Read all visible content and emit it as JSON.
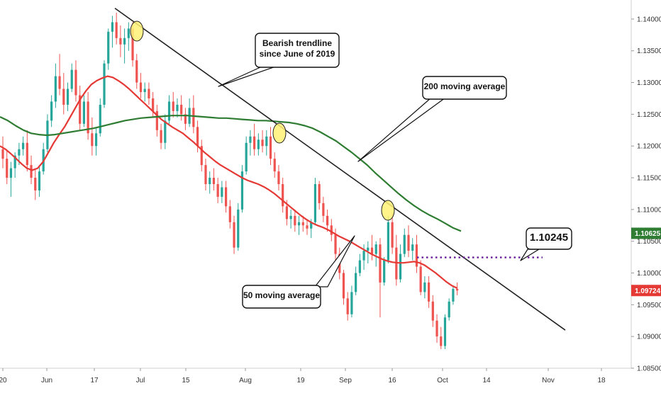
{
  "chart_data": {
    "type": "candlestick",
    "title": "",
    "xlabel": "",
    "ylabel": "",
    "ylim": [
      1.085,
      1.143
    ],
    "y_ticks": [
      "1.14000",
      "1.13500",
      "1.13000",
      "1.12500",
      "1.12000",
      "1.11500",
      "1.11000",
      "1.10500",
      "1.10000",
      "1.09500",
      "1.09000",
      "1.08500"
    ],
    "x_ticks": [
      "20",
      "Jun",
      "17",
      "Jul",
      "15",
      "Aug",
      "19",
      "Sep",
      "16",
      "Oct",
      "14",
      "Nov",
      "18"
    ],
    "grid": false,
    "colors": {
      "up": "#26a69a",
      "down": "#ef5350",
      "ma50": "#e53935",
      "ma200": "#2e7d32",
      "trendline": "#222222",
      "level": "#6a1b9a",
      "highlight": "#fff176"
    },
    "series": [
      {
        "name": "",
        "type": "candles",
        "values": [
          [
            1.1195,
            1.1215,
            1.1165,
            1.118
          ],
          [
            1.118,
            1.1195,
            1.114,
            1.115
          ],
          [
            1.115,
            1.1175,
            1.112,
            1.1165
          ],
          [
            1.1165,
            1.119,
            1.115,
            1.1185
          ],
          [
            1.1185,
            1.1205,
            1.117,
            1.1195
          ],
          [
            1.1195,
            1.1215,
            1.1185,
            1.1205
          ],
          [
            1.1205,
            1.1225,
            1.116,
            1.117
          ],
          [
            1.117,
            1.1185,
            1.114,
            1.115
          ],
          [
            1.115,
            1.1165,
            1.1115,
            1.113
          ],
          [
            1.113,
            1.117,
            1.112,
            1.116
          ],
          [
            1.116,
            1.1205,
            1.1155,
            1.1195
          ],
          [
            1.1195,
            1.125,
            1.119,
            1.124
          ],
          [
            1.124,
            1.128,
            1.123,
            1.127
          ],
          [
            1.127,
            1.133,
            1.126,
            1.131
          ],
          [
            1.131,
            1.1345,
            1.128,
            1.129
          ],
          [
            1.129,
            1.1315,
            1.125,
            1.1265
          ],
          [
            1.1265,
            1.13,
            1.1255,
            1.129
          ],
          [
            1.129,
            1.133,
            1.1285,
            1.132
          ],
          [
            1.132,
            1.1335,
            1.127,
            1.128
          ],
          [
            1.128,
            1.1295,
            1.1225,
            1.1235
          ],
          [
            1.1235,
            1.128,
            1.123,
            1.127
          ],
          [
            1.127,
            1.1285,
            1.121,
            1.122
          ],
          [
            1.122,
            1.1245,
            1.1185,
            1.12
          ],
          [
            1.12,
            1.123,
            1.1185,
            1.122
          ],
          [
            1.122,
            1.1275,
            1.1215,
            1.1265
          ],
          [
            1.1265,
            1.1335,
            1.126,
            1.133
          ],
          [
            1.133,
            1.1385,
            1.132,
            1.138
          ],
          [
            1.138,
            1.1405,
            1.1355,
            1.1395
          ],
          [
            1.1395,
            1.141,
            1.136,
            1.137
          ],
          [
            1.137,
            1.139,
            1.134,
            1.136
          ],
          [
            1.136,
            1.1385,
            1.133,
            1.137
          ],
          [
            1.137,
            1.1395,
            1.135,
            1.1385
          ],
          [
            1.1385,
            1.1395,
            1.1325,
            1.1335
          ],
          [
            1.1335,
            1.1345,
            1.129,
            1.13
          ],
          [
            1.13,
            1.1315,
            1.1275,
            1.1285
          ],
          [
            1.1285,
            1.13,
            1.127,
            1.129
          ],
          [
            1.129,
            1.13,
            1.1265,
            1.1275
          ],
          [
            1.1275,
            1.1285,
            1.1245,
            1.1255
          ],
          [
            1.1255,
            1.1265,
            1.1215,
            1.1225
          ],
          [
            1.1225,
            1.1235,
            1.1195,
            1.1205
          ],
          [
            1.1205,
            1.125,
            1.1195,
            1.124
          ],
          [
            1.124,
            1.128,
            1.1235,
            1.127
          ],
          [
            1.127,
            1.1285,
            1.1245,
            1.1255
          ],
          [
            1.1255,
            1.1275,
            1.1245,
            1.1265
          ],
          [
            1.1265,
            1.128,
            1.124,
            1.125
          ],
          [
            1.125,
            1.126,
            1.1225,
            1.1235
          ],
          [
            1.1235,
            1.1275,
            1.123,
            1.126
          ],
          [
            1.126,
            1.128,
            1.122,
            1.123
          ],
          [
            1.123,
            1.124,
            1.119,
            1.12
          ],
          [
            1.12,
            1.121,
            1.116,
            1.117
          ],
          [
            1.117,
            1.118,
            1.113,
            1.114
          ],
          [
            1.114,
            1.116,
            1.1125,
            1.115
          ],
          [
            1.115,
            1.1165,
            1.113,
            1.114
          ],
          [
            1.114,
            1.115,
            1.111,
            1.112
          ],
          [
            1.112,
            1.1145,
            1.111,
            1.1135
          ],
          [
            1.1135,
            1.1145,
            1.1095,
            1.1105
          ],
          [
            1.1105,
            1.1115,
            1.107,
            1.108
          ],
          [
            1.108,
            1.109,
            1.103,
            1.104
          ],
          [
            1.104,
            1.111,
            1.1035,
            1.11
          ],
          [
            1.11,
            1.117,
            1.1095,
            1.116
          ],
          [
            1.116,
            1.1215,
            1.1155,
            1.1205
          ],
          [
            1.1205,
            1.1225,
            1.1185,
            1.1215
          ],
          [
            1.1215,
            1.1235,
            1.1185,
            1.1195
          ],
          [
            1.1195,
            1.122,
            1.1185,
            1.121
          ],
          [
            1.121,
            1.1225,
            1.119,
            1.12
          ],
          [
            1.12,
            1.1225,
            1.1185,
            1.1215
          ],
          [
            1.1215,
            1.123,
            1.117,
            1.118
          ],
          [
            1.118,
            1.119,
            1.115,
            1.116
          ],
          [
            1.116,
            1.117,
            1.113,
            1.114
          ],
          [
            1.114,
            1.115,
            1.1095,
            1.1105
          ],
          [
            1.1105,
            1.1115,
            1.1075,
            1.1085
          ],
          [
            1.1085,
            1.11,
            1.107,
            1.109
          ],
          [
            1.109,
            1.11,
            1.1065,
            1.1075
          ],
          [
            1.1075,
            1.109,
            1.106,
            1.108
          ],
          [
            1.108,
            1.109,
            1.1065,
            1.1075
          ],
          [
            1.1075,
            1.1085,
            1.106,
            1.107
          ],
          [
            1.107,
            1.1085,
            1.1055,
            1.108
          ],
          [
            1.108,
            1.115,
            1.1075,
            1.114
          ],
          [
            1.114,
            1.1145,
            1.11,
            1.111
          ],
          [
            1.111,
            1.112,
            1.108,
            1.109
          ],
          [
            1.109,
            1.11,
            1.1065,
            1.1075
          ],
          [
            1.1075,
            1.1085,
            1.105,
            1.106
          ],
          [
            1.106,
            1.107,
            1.102,
            1.103
          ],
          [
            1.103,
            1.104,
            1.099,
            1.1
          ],
          [
            1.1,
            1.1005,
            1.095,
            1.096
          ],
          [
            1.096,
            1.097,
            1.0925,
            1.0935
          ],
          [
            1.0935,
            1.098,
            1.093,
            1.097
          ],
          [
            1.097,
            1.101,
            1.0965,
            1.1
          ],
          [
            1.1,
            1.103,
            1.0995,
            1.102
          ],
          [
            1.102,
            1.1045,
            1.1005,
            1.1035
          ],
          [
            1.1035,
            1.105,
            1.1015,
            1.104
          ],
          [
            1.104,
            1.106,
            1.102,
            1.103
          ],
          [
            1.103,
            1.105,
            1.101,
            1.1045
          ],
          [
            1.1045,
            1.1055,
            1.093,
            1.0985
          ],
          [
            1.0985,
            1.1025,
            1.098,
            1.102
          ],
          [
            1.102,
            1.109,
            1.1015,
            1.108
          ],
          [
            1.108,
            1.1095,
            1.103,
            1.104
          ],
          [
            1.104,
            1.106,
            1.098,
            1.099
          ],
          [
            1.099,
            1.1045,
            1.0985,
            1.103
          ],
          [
            1.103,
            1.107,
            1.1025,
            1.106
          ],
          [
            1.106,
            1.1075,
            1.1025,
            1.1035
          ],
          [
            1.1035,
            1.1055,
            1.102,
            1.1045
          ],
          [
            1.1045,
            1.106,
            1.1,
            1.101
          ],
          [
            1.101,
            1.102,
            1.0965,
            1.097
          ],
          [
            1.097,
            1.0995,
            1.096,
            1.0985
          ],
          [
            1.0985,
            1.0995,
            1.0945,
            1.0955
          ],
          [
            1.0955,
            1.0965,
            1.0915,
            1.0925
          ],
          [
            1.0925,
            1.0935,
            1.089,
            1.09
          ],
          [
            1.09,
            1.0915,
            1.088,
            1.0885
          ],
          [
            1.0885,
            1.0935,
            1.088,
            1.093
          ],
          [
            1.093,
            1.096,
            1.0925,
            1.0955
          ],
          [
            1.0955,
            1.098,
            1.095,
            1.0975
          ],
          [
            1.0975,
            1.0985,
            1.0965,
            1.09724
          ]
        ]
      },
      {
        "name": "50 moving average",
        "type": "line",
        "values": [
          1.12,
          1.1195,
          1.1188,
          1.118,
          1.1172,
          1.1165,
          1.1162,
          1.1165,
          1.1175,
          1.119,
          1.1205,
          1.1218,
          1.123,
          1.1245,
          1.126,
          1.1275,
          1.1287,
          1.1297,
          1.1303,
          1.1307,
          1.131,
          1.1308,
          1.1303,
          1.1297,
          1.129,
          1.1282,
          1.1274,
          1.1266,
          1.1258,
          1.125,
          1.1242,
          1.1236,
          1.123,
          1.1225,
          1.122,
          1.1213,
          1.1206,
          1.1198,
          1.119,
          1.1183,
          1.1176,
          1.117,
          1.1165,
          1.116,
          1.1155,
          1.115,
          1.1146,
          1.1143,
          1.114,
          1.1136,
          1.1131,
          1.1125,
          1.1118,
          1.1111,
          1.1104,
          1.1097,
          1.109,
          1.1084,
          1.1079,
          1.1075,
          1.1072,
          1.1068,
          1.1063,
          1.1058,
          1.1054,
          1.105,
          1.1045,
          1.104,
          1.1035,
          1.103,
          1.1026,
          1.1022,
          1.1019,
          1.1017,
          1.1016,
          1.1016,
          1.1017,
          1.1018,
          1.1016,
          1.1012,
          1.1006,
          1.1,
          1.0993,
          1.0986,
          1.098,
          1.0976
        ],
        "start_index": 24
      },
      {
        "name": "200 moving average",
        "type": "line",
        "values": [
          1.1246,
          1.124,
          1.1232,
          1.1225,
          1.122,
          1.1218,
          1.1217,
          1.1218,
          1.122,
          1.1222,
          1.1224,
          1.1226,
          1.1228,
          1.1231,
          1.1234,
          1.1237,
          1.124,
          1.1242,
          1.1244,
          1.1245,
          1.1246,
          1.1247,
          1.1248,
          1.1248,
          1.1248,
          1.1247,
          1.1246,
          1.1245,
          1.1244,
          1.1244,
          1.1243,
          1.1242,
          1.1241,
          1.124,
          1.124,
          1.1239,
          1.1238,
          1.1237,
          1.1235,
          1.1232,
          1.1228,
          1.1222,
          1.1215,
          1.1208,
          1.1199,
          1.119,
          1.118,
          1.117,
          1.1158,
          1.1147,
          1.1136,
          1.1125,
          1.1115,
          1.1106,
          1.1098,
          1.1091,
          1.1085,
          1.1078,
          1.1071,
          1.1066
        ],
        "start_index": 0
      }
    ],
    "trendline": {
      "from": [
        1.1417,
        0
      ],
      "to": [
        1.091,
        1
      ]
    },
    "level": {
      "value": 1.10245,
      "label": "1.10245"
    },
    "last_price": "1.09724",
    "ma200_last": "1.10625",
    "annotations": [
      {
        "id": "bearish",
        "text": [
          "Bearish trendline",
          "since June of 2019"
        ]
      },
      {
        "id": "ma200",
        "text": [
          "200 moving average"
        ]
      },
      {
        "id": "ma50",
        "text": [
          "50 moving average"
        ]
      }
    ]
  }
}
